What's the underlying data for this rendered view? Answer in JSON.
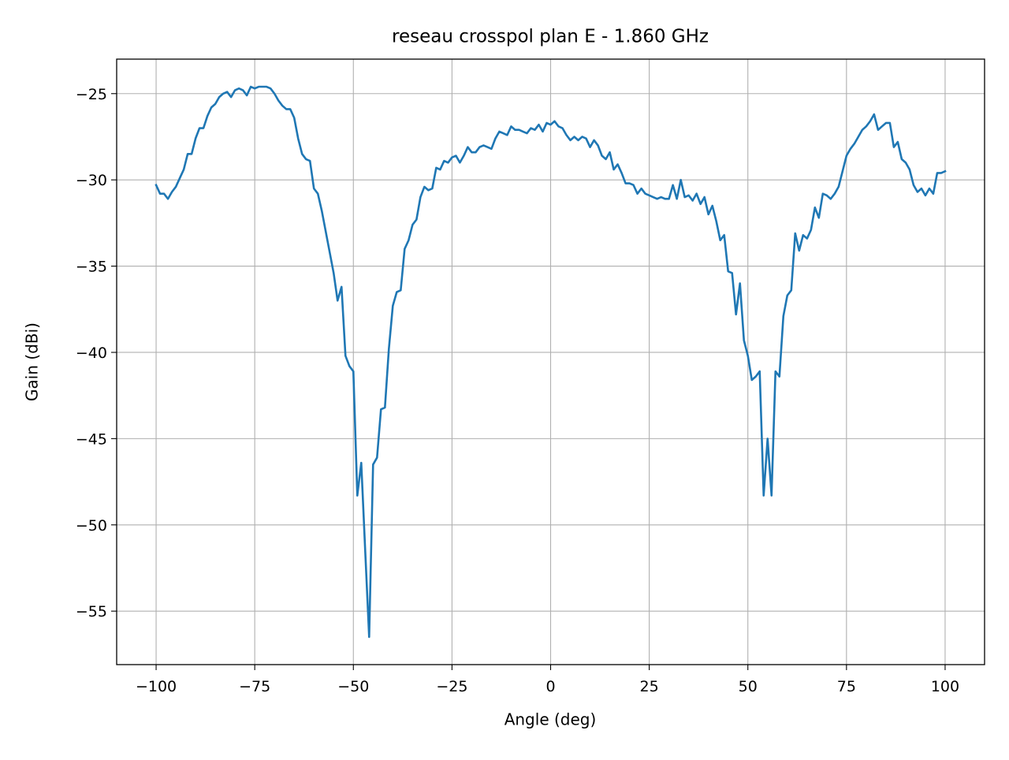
{
  "chart_data": {
    "type": "line",
    "title": "reseau crosspol plan E - 1.860 GHz",
    "xlabel": "Angle (deg)",
    "ylabel": "Gain (dBi)",
    "x": [
      -100,
      -99,
      -98,
      -97,
      -96,
      -95,
      -94,
      -93,
      -92,
      -91,
      -90,
      -89,
      -88,
      -87,
      -86,
      -85,
      -84,
      -83,
      -82,
      -81,
      -80,
      -79,
      -78,
      -77,
      -76,
      -75,
      -74,
      -73,
      -72,
      -71,
      -70,
      -69,
      -68,
      -67,
      -66,
      -65,
      -64,
      -63,
      -62,
      -61,
      -60,
      -59,
      -58,
      -57,
      -56,
      -55,
      -54,
      -53,
      -52,
      -51,
      -50,
      -49,
      -48,
      -47,
      -46,
      -45,
      -44,
      -43,
      -42,
      -41,
      -40,
      -39,
      -38,
      -37,
      -36,
      -35,
      -34,
      -33,
      -32,
      -31,
      -30,
      -29,
      -28,
      -27,
      -26,
      -25,
      -24,
      -23,
      -22,
      -21,
      -20,
      -19,
      -18,
      -17,
      -16,
      -15,
      -14,
      -13,
      -12,
      -11,
      -10,
      -9,
      -8,
      -7,
      -6,
      -5,
      -4,
      -3,
      -2,
      -1,
      0,
      1,
      2,
      3,
      4,
      5,
      6,
      7,
      8,
      9,
      10,
      11,
      12,
      13,
      14,
      15,
      16,
      17,
      18,
      19,
      20,
      21,
      22,
      23,
      24,
      25,
      26,
      27,
      28,
      29,
      30,
      31,
      32,
      33,
      34,
      35,
      36,
      37,
      38,
      39,
      40,
      41,
      42,
      43,
      44,
      45,
      46,
      47,
      48,
      49,
      50,
      51,
      52,
      53,
      54,
      55,
      56,
      57,
      58,
      59,
      60,
      61,
      62,
      63,
      64,
      65,
      66,
      67,
      68,
      69,
      70,
      71,
      72,
      73,
      74,
      75,
      76,
      77,
      78,
      79,
      80,
      81,
      82,
      83,
      84,
      85,
      86,
      87,
      88,
      89,
      90,
      91,
      92,
      93,
      94,
      95,
      96,
      97,
      98,
      99,
      100
    ],
    "series": [
      {
        "color": "#1f77b4",
        "values": [
          -30.3,
          -30.8,
          -30.8,
          -31.1,
          -30.7,
          -30.4,
          -29.9,
          -29.4,
          -28.5,
          -28.5,
          -27.6,
          -27.0,
          -27.0,
          -26.3,
          -25.8,
          -25.6,
          -25.2,
          -25.0,
          -24.9,
          -25.2,
          -24.8,
          -24.7,
          -24.8,
          -25.1,
          -24.6,
          -24.7,
          -24.6,
          -24.6,
          -24.6,
          -24.7,
          -25.0,
          -25.4,
          -25.7,
          -25.9,
          -25.9,
          -26.4,
          -27.6,
          -28.5,
          -28.8,
          -28.9,
          -30.5,
          -30.8,
          -31.8,
          -33.0,
          -34.2,
          -35.4,
          -37.0,
          -36.2,
          -40.2,
          -40.8,
          -41.1,
          -48.3,
          -46.4,
          -51.5,
          -56.5,
          -46.5,
          -46.1,
          -43.3,
          -43.2,
          -39.8,
          -37.3,
          -36.5,
          -36.4,
          -34.0,
          -33.5,
          -32.6,
          -32.3,
          -31.0,
          -30.4,
          -30.6,
          -30.5,
          -29.3,
          -29.4,
          -28.9,
          -29.0,
          -28.7,
          -28.6,
          -29.0,
          -28.6,
          -28.1,
          -28.4,
          -28.4,
          -28.1,
          -28.0,
          -28.1,
          -28.2,
          -27.6,
          -27.2,
          -27.3,
          -27.4,
          -26.9,
          -27.1,
          -27.1,
          -27.2,
          -27.3,
          -27.0,
          -27.1,
          -26.8,
          -27.2,
          -26.7,
          -26.8,
          -26.6,
          -26.9,
          -27.0,
          -27.4,
          -27.7,
          -27.5,
          -27.7,
          -27.5,
          -27.6,
          -28.1,
          -27.7,
          -28.0,
          -28.6,
          -28.8,
          -28.4,
          -29.4,
          -29.1,
          -29.6,
          -30.2,
          -30.2,
          -30.3,
          -30.8,
          -30.5,
          -30.8,
          -30.9,
          -31.0,
          -31.1,
          -31.0,
          -31.1,
          -31.1,
          -30.3,
          -31.1,
          -30.0,
          -31.0,
          -30.9,
          -31.2,
          -30.8,
          -31.4,
          -31.0,
          -32.0,
          -31.5,
          -32.4,
          -33.5,
          -33.2,
          -35.3,
          -35.4,
          -37.8,
          -36.0,
          -39.3,
          -40.2,
          -41.6,
          -41.4,
          -41.1,
          -48.3,
          -45.0,
          -48.3,
          -41.1,
          -41.4,
          -37.9,
          -36.7,
          -36.4,
          -33.1,
          -34.1,
          -33.2,
          -33.4,
          -32.9,
          -31.6,
          -32.2,
          -30.8,
          -30.9,
          -31.1,
          -30.8,
          -30.4,
          -29.5,
          -28.6,
          -28.2,
          -27.9,
          -27.5,
          -27.1,
          -26.9,
          -26.6,
          -26.2,
          -27.1,
          -26.9,
          -26.7,
          -26.7,
          -28.1,
          -27.8,
          -28.8,
          -29.0,
          -29.4,
          -30.3,
          -30.7,
          -30.5,
          -30.9,
          -30.5,
          -30.8,
          -29.6,
          -29.6,
          -29.5
        ]
      }
    ],
    "xlim": [
      -110,
      110
    ],
    "xticks": [
      {
        "value": -100,
        "label": "−100"
      },
      {
        "value": -75,
        "label": "−75"
      },
      {
        "value": -50,
        "label": "−50"
      },
      {
        "value": -25,
        "label": "−25"
      },
      0,
      25,
      50,
      75,
      100
    ],
    "ylim": [
      -58.1,
      -23.0
    ],
    "yticks": [
      {
        "value": -55,
        "label": "−55"
      },
      {
        "value": -50,
        "label": "−50"
      },
      {
        "value": -45,
        "label": "−45"
      },
      {
        "value": -40,
        "label": "−40"
      },
      {
        "value": -35,
        "label": "−35"
      },
      {
        "value": -30,
        "label": "−30"
      },
      {
        "value": -25,
        "label": "−25"
      }
    ],
    "grid": true
  }
}
